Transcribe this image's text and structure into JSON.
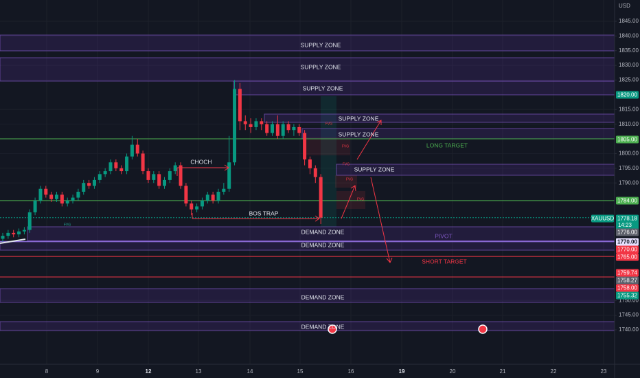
{
  "chart_data": {
    "type": "candlestick",
    "currency": "USD",
    "symbol": "XAUUSD",
    "countdown": "14:23",
    "categories": [
      "8",
      "9",
      "12",
      "13",
      "14",
      "15",
      "16",
      "19",
      "20",
      "21",
      "22",
      "23"
    ],
    "ylim": [
      1728.3,
      1852.25
    ],
    "yticks": [
      {
        "value": 1845,
        "label": "1845.00"
      },
      {
        "value": 1840,
        "label": "1840.00"
      },
      {
        "value": 1835,
        "label": "1835.00"
      },
      {
        "value": 1830,
        "label": "1830.00"
      },
      {
        "value": 1825,
        "label": "1825.00"
      },
      {
        "value": 1815,
        "label": "1815.00"
      },
      {
        "value": 1810,
        "label": "1810.00"
      },
      {
        "value": 1800,
        "label": "1800.00"
      },
      {
        "value": 1795,
        "label": "1795.00"
      },
      {
        "value": 1790,
        "label": "1790.00"
      },
      {
        "value": 1750,
        "label": "1750.00"
      },
      {
        "value": 1745,
        "label": "1745.00"
      },
      {
        "value": 1740,
        "label": "1740.00"
      }
    ],
    "grid": true,
    "up_color": "#089981",
    "down_color": "#f23645",
    "open": [
      1771,
      1772,
      1773,
      1772.5,
      1773.5,
      1774,
      1780,
      1784,
      1788,
      1786,
      1784.5,
      1786,
      1783,
      1784,
      1785,
      1787,
      1790,
      1789,
      1791,
      1793,
      1794,
      1797,
      1795,
      1794,
      1799,
      1803,
      1800,
      1794,
      1791,
      1793,
      1789,
      1791,
      1794,
      1796,
      1789,
      1783,
      1781,
      1782,
      1784,
      1786,
      1784,
      1787,
      1788,
      1797,
      1822,
      1811,
      1810,
      1809,
      1811,
      1810,
      1807,
      1810,
      1806,
      1810,
      1808,
      1809,
      1807,
      1798,
      1795,
      1792
    ],
    "high": [
      1773,
      1774,
      1774,
      1774.5,
      1775,
      1781,
      1785,
      1789,
      1789,
      1787,
      1787,
      1787,
      1785,
      1786,
      1788,
      1791,
      1791,
      1792,
      1794,
      1795,
      1798,
      1798,
      1796,
      1800,
      1806,
      1805,
      1801,
      1795,
      1794,
      1794,
      1792,
      1795,
      1797,
      1797,
      1790,
      1784,
      1783,
      1785,
      1787,
      1787,
      1788,
      1790,
      1806,
      1825,
      1824,
      1813,
      1812,
      1812,
      1812,
      1811,
      1811,
      1813,
      1811,
      1811,
      1810,
      1810,
      1808,
      1799,
      1796,
      1793
    ],
    "low": [
      1770,
      1771,
      1771.5,
      1771.5,
      1772.5,
      1773,
      1779,
      1783,
      1785,
      1783.5,
      1783.5,
      1782,
      1782,
      1783,
      1784,
      1786,
      1788,
      1788,
      1790,
      1792,
      1793,
      1794,
      1793,
      1793,
      1798,
      1799,
      1793,
      1790,
      1790,
      1788,
      1788,
      1790,
      1793,
      1788,
      1782,
      1779,
      1780,
      1781,
      1783,
      1783,
      1783,
      1786,
      1787,
      1796,
      1808,
      1808,
      1807,
      1808,
      1808,
      1806,
      1806,
      1805,
      1805,
      1807,
      1806,
      1806,
      1796,
      1793,
      1790,
      1776
    ],
    "close": [
      1772,
      1773,
      1772.5,
      1773.5,
      1774,
      1780,
      1784,
      1788,
      1786,
      1784.5,
      1786,
      1783,
      1784,
      1785,
      1787,
      1790,
      1789,
      1791,
      1793,
      1794,
      1797,
      1795,
      1794,
      1799,
      1803,
      1800,
      1794,
      1791,
      1793,
      1789,
      1791,
      1794,
      1796,
      1789,
      1783,
      1781,
      1782,
      1784,
      1786,
      1784,
      1787,
      1788,
      1797,
      1822,
      1811,
      1810,
      1809,
      1811,
      1810,
      1807,
      1810,
      1806,
      1810,
      1808,
      1809,
      1807,
      1798,
      1795,
      1792,
      1778.2
    ],
    "price_badges": [
      {
        "value": 1820,
        "label": "1820.00",
        "color": "#089981"
      },
      {
        "value": 1805,
        "label": "1805.00",
        "color": "#4caf50",
        "line_color": "#4caf50"
      },
      {
        "value": 1784,
        "label": "1784.00",
        "color": "#4caf50",
        "line_color": "#4caf50"
      },
      {
        "value": 1778.18,
        "label": "1778.18",
        "color": "#089981",
        "line_color": "#089981",
        "dashed": true
      },
      {
        "value": 1776,
        "label": "1776.00",
        "color": "#5d606b"
      },
      {
        "value": 1770,
        "label": "1770.00",
        "color": "#e6e1ff",
        "line_color": "#9c7cf0"
      },
      {
        "value": 1770,
        "label": "1770.00",
        "color": "#f23645"
      },
      {
        "value": 1765,
        "label": "1765.00",
        "color": "#f23645",
        "line_color": "#f23645"
      },
      {
        "value": 1759.74,
        "label": "1759.74",
        "color": "#f23645"
      },
      {
        "value": 1758.27,
        "label": "1758.27",
        "color": "#5d606b"
      },
      {
        "value": 1758,
        "label": "1758.00",
        "color": "#f23645",
        "line_color": "#f23645"
      },
      {
        "value": 1755.32,
        "label": "1755.32",
        "color": "#089981"
      }
    ],
    "zone_labels": [
      "SUPPLY ZONE",
      "SUPPLY ZONE",
      "SUPPLY ZONE",
      "SUPPLY ZONE",
      "SUPPLY ZONE",
      "SUPPLY ZONE",
      "DEMAND ZONE",
      "DEMAND ZONE",
      "DEMAND ZONE",
      "DEMAND ZONE"
    ],
    "annotations": [
      "CHOCH",
      "BOS TRAP",
      "LONG TARGET",
      "PIVOT",
      "SHORT TARGET"
    ],
    "fvg_label": "FVG"
  }
}
